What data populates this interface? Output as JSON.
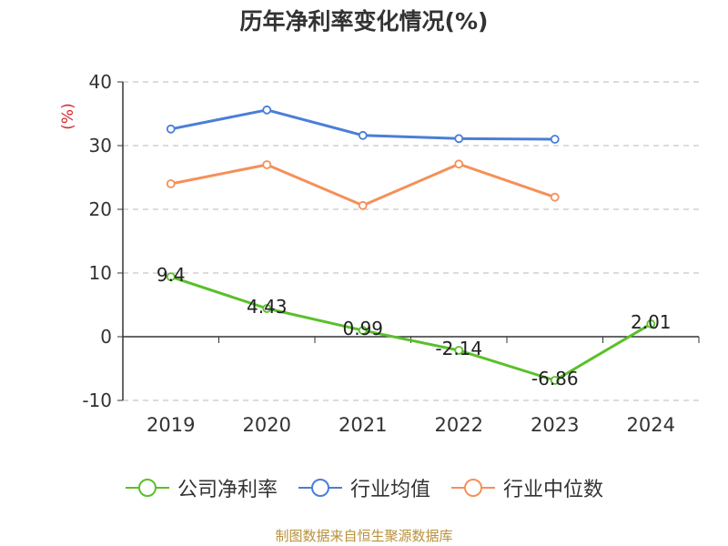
{
  "chart_data": {
    "type": "line",
    "title": "历年净利率变化情况(%)",
    "ylabel": "(%)",
    "xlabel": "",
    "ylim": [
      -10,
      40
    ],
    "yticks": [
      -10,
      0,
      10,
      20,
      30,
      40
    ],
    "grid": true,
    "legend_position": "bottom",
    "categories": [
      "2019",
      "2020",
      "2021",
      "2022",
      "2023",
      "2024"
    ],
    "series": [
      {
        "name": "公司净利率",
        "color": "#5ac02a",
        "values": [
          9.4,
          4.43,
          0.99,
          -2.14,
          -6.86,
          2.01
        ],
        "labels": [
          "9.4",
          "4.43",
          "0.99",
          "-2.14",
          "-6.86",
          "2.01"
        ]
      },
      {
        "name": "行业均值",
        "color": "#4a7ed8",
        "values": [
          32.6,
          35.6,
          31.6,
          31.1,
          31.0,
          null
        ]
      },
      {
        "name": "行业中位数",
        "color": "#f59059",
        "values": [
          24.0,
          27.0,
          20.6,
          27.1,
          21.9,
          null
        ]
      }
    ],
    "ylabel_color": "#d9262c"
  },
  "footer": {
    "source": "制图数据来自恒生聚源数据库"
  }
}
